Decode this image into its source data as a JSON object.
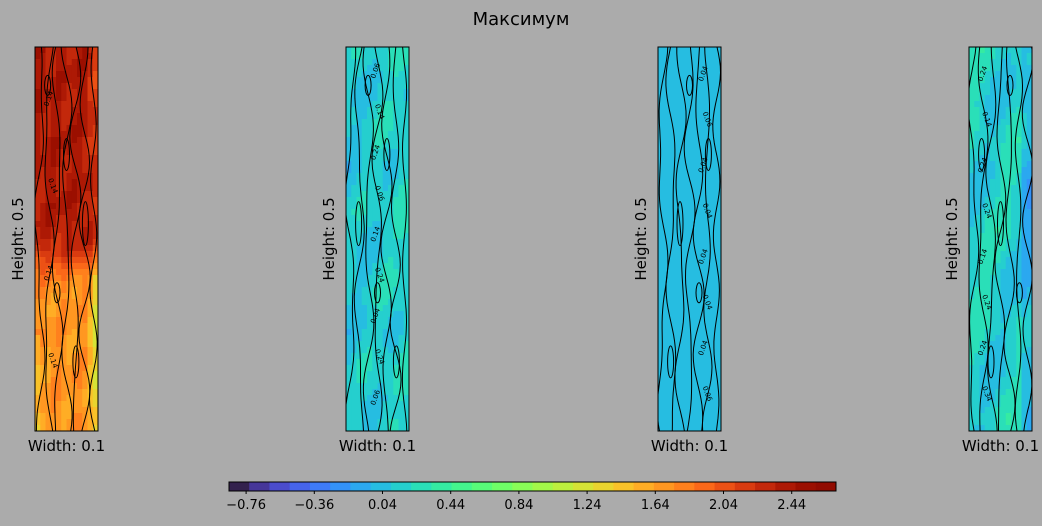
{
  "chart_data": {
    "type": "heatmap",
    "title": "Максимум",
    "panels": [
      {
        "ylabel": "Height: 0.5",
        "xlabel": "Width: 0.1",
        "value_range": [
          1.4,
          2.6
        ],
        "contour_labels": [
          "0.14",
          "0.14",
          "0.14",
          "0.14"
        ]
      },
      {
        "ylabel": "Height: 0.5",
        "xlabel": "Width: 0.1",
        "value_range": [
          -0.06,
          0.3
        ],
        "contour_labels": [
          "0.06",
          "0.14",
          "0.24",
          "0.06",
          "0.14",
          "0.24",
          "0.04",
          "0.24",
          "0.06"
        ]
      },
      {
        "ylabel": "Height: 0.5",
        "xlabel": "Width: 0.1",
        "value_range": [
          -0.06,
          0.06
        ],
        "contour_labels": [
          "0.04",
          "0.06",
          "0.04",
          "0.04",
          "0.04",
          "0.04",
          "0.04",
          "0.06"
        ]
      },
      {
        "ylabel": "Height: 0.5",
        "xlabel": "Width: 0.1",
        "value_range": [
          0.0,
          0.34
        ],
        "contour_labels": [
          "0.24",
          "0.14",
          "0.24",
          "0.24",
          "0.14",
          "0.24",
          "0.24",
          "0.34"
        ]
      }
    ],
    "colorbar": {
      "min": -0.86,
      "max": 2.7,
      "levels": 30,
      "colormap": "turbo",
      "ticks": [
        "−0.76",
        "−0.36",
        "0.04",
        "0.44",
        "0.84",
        "1.24",
        "1.64",
        "2.04",
        "2.44"
      ],
      "tick_values": [
        -0.76,
        -0.36,
        0.04,
        0.44,
        0.84,
        1.24,
        1.64,
        2.04,
        2.44
      ]
    }
  }
}
